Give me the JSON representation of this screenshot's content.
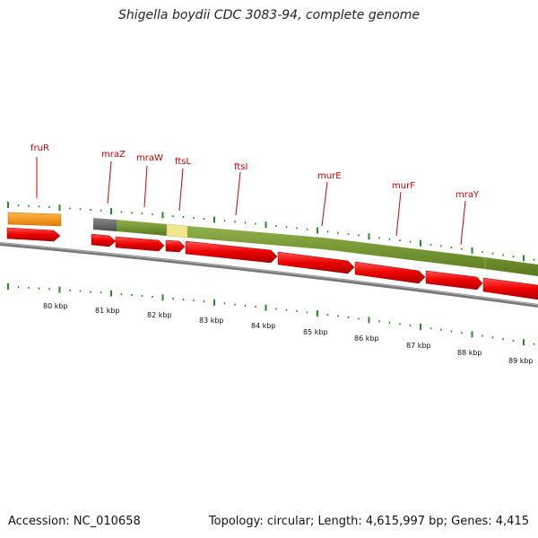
{
  "title": "Shigella boydii CDC 3083-94, complete genome",
  "footer": {
    "accession": "Accession: NC_010658",
    "topology": "Topology: circular; Length: 4,615,997 bp; Genes: 4,415"
  },
  "gene_labels": [
    "fruR",
    "mraZ",
    "mraW",
    "ftsL",
    "ftsI",
    "murE",
    "murF",
    "mraY"
  ],
  "kbp_labels": [
    "80 kbp",
    "81 kbp",
    "82 kbp",
    "83 kbp",
    "84 kbp",
    "85 kbp",
    "86 kbp",
    "87 kbp",
    "88 kbp",
    "89 kbp"
  ],
  "colors": {
    "gene_label": "#cc0000",
    "cds": "#ee1111",
    "operon": "#6b8e23",
    "regulator": "#ff9900",
    "pale": "#f0e68c",
    "gray": "#666666",
    "tick": "#228b22"
  }
}
